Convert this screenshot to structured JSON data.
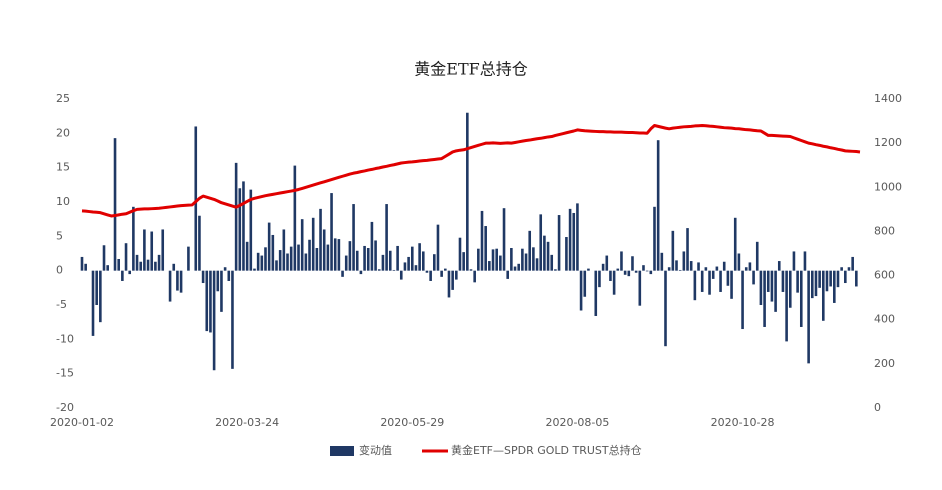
{
  "chart_data": {
    "type": "bar",
    "title": "黄金ETF总持仓",
    "categories": [
      "2020-01-02",
      null,
      null,
      null,
      null,
      null,
      null,
      null,
      null,
      null,
      null,
      null,
      null,
      null,
      null,
      null,
      null,
      null,
      null,
      null,
      null,
      null,
      null,
      null,
      null,
      null,
      null,
      null,
      null,
      null,
      null,
      null,
      null,
      null,
      null,
      null,
      null,
      null,
      null,
      null,
      null,
      null,
      null,
      null,
      null,
      "2020-03-24",
      null,
      null,
      null,
      null,
      null,
      null,
      null,
      null,
      null,
      null,
      null,
      null,
      null,
      null,
      null,
      null,
      null,
      null,
      null,
      null,
      null,
      null,
      null,
      null,
      null,
      null,
      null,
      null,
      null,
      null,
      null,
      null,
      null,
      null,
      null,
      null,
      null,
      null,
      null,
      null,
      null,
      null,
      null,
      null,
      "2020-05-29",
      null,
      null,
      null,
      null,
      null,
      null,
      null,
      null,
      null,
      null,
      null,
      null,
      null,
      null,
      null,
      null,
      null,
      null,
      null,
      null,
      null,
      null,
      null,
      null,
      null,
      null,
      null,
      null,
      null,
      null,
      null,
      null,
      null,
      null,
      null,
      null,
      null,
      null,
      null,
      null,
      null,
      null,
      null,
      null,
      "2020-08-05",
      null,
      null,
      null,
      null,
      null,
      null,
      null,
      null,
      null,
      null,
      null,
      null,
      null,
      null,
      null,
      null,
      null,
      null,
      null,
      null,
      null,
      null,
      null,
      null,
      null,
      null,
      null,
      null,
      null,
      null,
      null,
      null,
      null,
      null,
      null,
      null,
      null,
      null,
      null,
      null,
      null,
      null,
      null,
      null,
      "2020-10-28",
      null,
      null,
      null,
      null,
      null,
      null,
      null,
      null,
      null,
      null,
      null,
      null,
      null,
      null,
      null,
      null,
      null,
      null,
      null,
      null,
      null,
      null,
      null,
      null,
      null,
      null,
      null,
      null,
      null,
      null,
      null,
      null
    ],
    "series": [
      {
        "name": "变动值",
        "type": "bar",
        "color": "#1f3864",
        "axis": "y",
        "values": [
          2,
          1,
          0,
          -9.5,
          -5,
          -7.5,
          3.7,
          0.8,
          0,
          19.3,
          1.7,
          -1.5,
          4,
          -0.5,
          9.3,
          2.3,
          1.3,
          6,
          1.6,
          5.7,
          1.3,
          2.3,
          6,
          0,
          -4.5,
          1,
          -2.9,
          -3.2,
          0,
          3.5,
          0,
          21,
          8,
          -1.8,
          -8.8,
          -9,
          -14.5,
          -3,
          -6,
          0.5,
          -1.5,
          -14.3,
          15.7,
          12,
          13,
          4.2,
          11.8,
          0.3,
          2.6,
          2.2,
          3.4,
          7,
          5.2,
          1.5,
          3,
          6,
          2.5,
          3.5,
          15.3,
          3.8,
          7.5,
          2.5,
          4.5,
          7.7,
          3.3,
          9,
          6,
          3.8,
          11.3,
          4.7,
          4.6,
          -0.9,
          2.2,
          4.3,
          9.7,
          2.9,
          -0.5,
          3.6,
          3.3,
          7.1,
          4.4,
          0.2,
          2.3,
          9.7,
          2.9,
          0.1,
          3.6,
          -1.3,
          1.2,
          2,
          3.5,
          0.8,
          4,
          2.8,
          -0.3,
          -1.5,
          2.4,
          6.7,
          -0.9,
          0.3,
          -3.9,
          -2.8,
          -1.3,
          4.8,
          2.7,
          23,
          0.2,
          -1.7,
          3.2,
          8.7,
          6.5,
          1.4,
          3.1,
          3.2,
          2.2,
          9.1,
          -1.2,
          3.3,
          0.6,
          1,
          3.2,
          2.5,
          5.8,
          3.4,
          1.8,
          8.2,
          5.1,
          4.2,
          2.3,
          0.2,
          8.1,
          0,
          4.9,
          9,
          8.4,
          9.8,
          -5.8,
          -3.8,
          0.3,
          0,
          -6.6,
          -2.4,
          1,
          2.2,
          -1.5,
          -3.5,
          0.3,
          2.8,
          -0.6,
          -0.8,
          2.1,
          -0.3,
          -5.1,
          0.8,
          -0.1,
          -0.5,
          9.3,
          19,
          2.6,
          -11,
          0.5,
          5.8,
          1.5,
          0.1,
          2.8,
          6.2,
          1.4,
          -4.3,
          1.2,
          -3.1,
          0.5,
          -3.5,
          -1.2,
          0.6,
          -3.1,
          1.3,
          -2.2,
          -4.1,
          7.7,
          2.5,
          -8.5,
          0.5,
          1.2,
          -2,
          4.2,
          -5,
          -8.2,
          -3.1,
          -4.5,
          -6,
          1.4,
          -3.1,
          -10.3,
          -5.4,
          2.8,
          -3.2,
          -8.2,
          2.8,
          -13.5,
          -4,
          -3.7,
          -2.5,
          -7.3,
          -3,
          -2.3,
          -4.7,
          -2.4,
          0.5,
          -1.8,
          0.5,
          2,
          -2.3,
          0
        ]
      },
      {
        "name": "黄金ETF—SPDR GOLD TRUST总持仓",
        "type": "line",
        "color": "#e00000",
        "axis": "y2",
        "values": [
          893,
          892,
          890,
          888,
          887,
          885,
          880,
          875,
          870,
          872,
          875,
          878,
          880,
          887,
          894,
          900,
          901,
          902,
          902,
          903,
          904,
          905,
          907,
          909,
          911,
          913,
          915,
          917,
          918,
          919,
          920,
          935,
          950,
          960,
          955,
          950,
          945,
          938,
          930,
          925,
          920,
          915,
          910,
          918,
          927,
          936,
          945,
          950,
          954,
          958,
          962,
          965,
          968,
          971,
          974,
          977,
          980,
          983,
          986,
          990,
          995,
          1000,
          1005,
          1010,
          1015,
          1020,
          1025,
          1030,
          1035,
          1040,
          1045,
          1050,
          1055,
          1060,
          1064,
          1067,
          1071,
          1074,
          1078,
          1081,
          1085,
          1088,
          1092,
          1095,
          1099,
          1102,
          1106,
          1110,
          1112,
          1114,
          1115,
          1117,
          1119,
          1121,
          1122,
          1124,
          1126,
          1128,
          1130,
          1140,
          1150,
          1160,
          1165,
          1168,
          1170,
          1175,
          1180,
          1185,
          1190,
          1195,
          1200,
          1200,
          1201,
          1200,
          1199,
          1200,
          1201,
          1200,
          1203,
          1206,
          1209,
          1212,
          1214,
          1217,
          1220,
          1222,
          1225,
          1228,
          1230,
          1235,
          1239,
          1243,
          1247,
          1251,
          1255,
          1260,
          1258,
          1256,
          1255,
          1254,
          1253,
          1252,
          1252,
          1251,
          1251,
          1250,
          1250,
          1250,
          1249,
          1248,
          1248,
          1247,
          1246,
          1246,
          1245,
          1265,
          1280,
          1276,
          1272,
          1268,
          1265,
          1268,
          1270,
          1272,
          1274,
          1275,
          1276,
          1278,
          1279,
          1280,
          1279,
          1277,
          1276,
          1274,
          1272,
          1270,
          1269,
          1268,
          1266,
          1265,
          1263,
          1261,
          1260,
          1258,
          1256,
          1255,
          1245,
          1235,
          1235,
          1234,
          1233,
          1232,
          1231,
          1230,
          1224,
          1218,
          1212,
          1206,
          1200,
          1197,
          1193,
          1190,
          1186,
          1183,
          1179,
          1176,
          1172,
          1169,
          1165,
          1164,
          1163,
          1162,
          1160
        ]
      }
    ],
    "ylim": [
      -20,
      25
    ],
    "yticks": [
      -20,
      -15,
      -10,
      -5,
      0,
      5,
      10,
      15,
      20,
      25
    ],
    "y2lim": [
      0,
      1400
    ],
    "y2ticks": [
      0,
      200,
      400,
      600,
      800,
      1000,
      1200,
      1400
    ],
    "grid": false,
    "legend": "bottom"
  }
}
